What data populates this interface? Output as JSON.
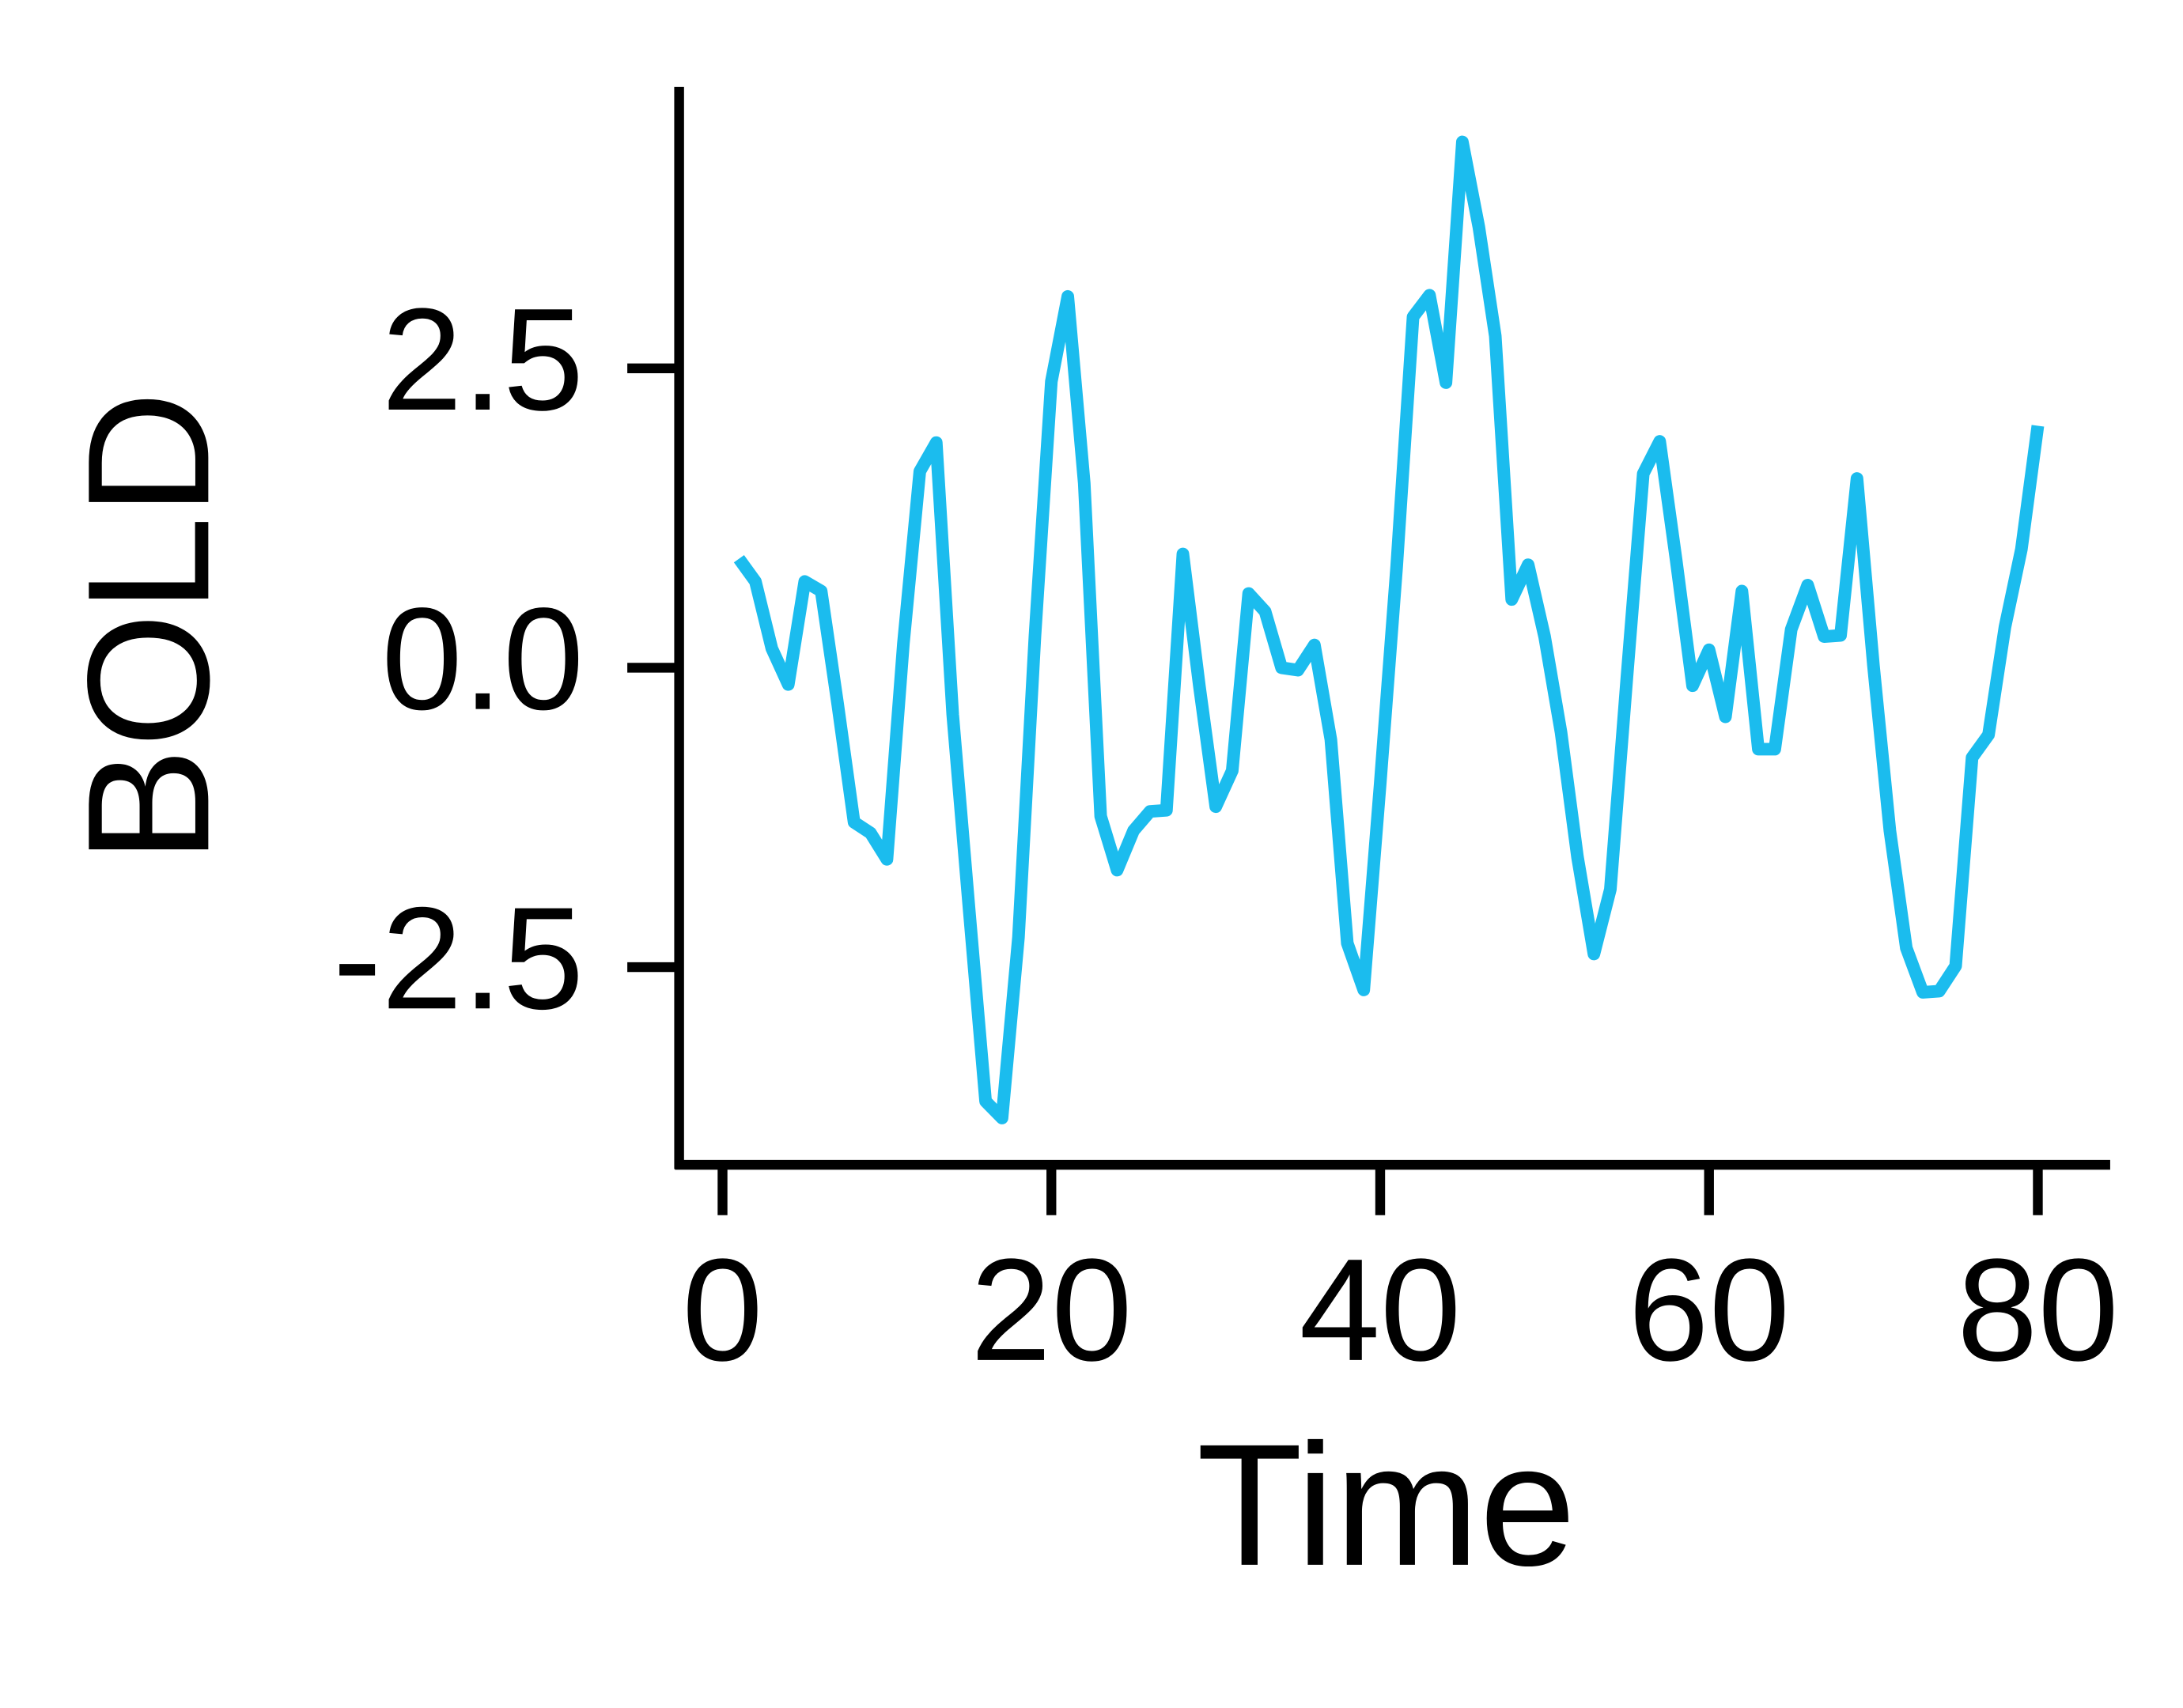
{
  "chart_data": {
    "type": "line",
    "xlabel": "Time",
    "ylabel": "BOLD",
    "x": [
      1,
      2,
      3,
      4,
      5,
      6,
      7,
      8,
      9,
      10,
      11,
      12,
      13,
      14,
      15,
      16,
      17,
      18,
      19,
      20,
      21,
      22,
      23,
      24,
      25,
      26,
      27,
      28,
      29,
      30,
      31,
      32,
      33,
      34,
      35,
      36,
      37,
      38,
      39,
      40,
      41,
      42,
      43,
      44,
      45,
      46,
      47,
      48,
      49,
      50,
      51,
      52,
      53,
      54,
      55,
      56,
      57,
      58,
      59,
      60,
      61,
      62,
      63,
      64,
      65,
      66,
      67,
      68,
      69,
      70,
      71,
      72,
      73,
      74,
      75,
      76,
      77,
      78,
      79,
      80
    ],
    "series": [
      {
        "name": "BOLD",
        "color": "#1bbcee",
        "values": [
          0.91,
          0.72,
          0.16,
          -0.14,
          0.72,
          0.64,
          -0.3,
          -1.29,
          -1.38,
          -1.6,
          0.2,
          1.64,
          1.88,
          -0.39,
          -2.02,
          -3.62,
          -3.76,
          -2.25,
          0.26,
          2.39,
          3.1,
          1.54,
          -1.24,
          -1.69,
          -1.36,
          -1.2,
          -1.19,
          0.95,
          -0.15,
          -1.16,
          -0.86,
          0.62,
          0.47,
          0.0,
          -0.02,
          0.19,
          -0.6,
          -2.3,
          -2.69,
          -0.97,
          0.84,
          2.93,
          3.11,
          2.38,
          4.39,
          3.68,
          2.77,
          0.57,
          0.86,
          0.26,
          -0.54,
          -1.58,
          -2.39,
          -1.85,
          -0.09,
          1.62,
          1.89,
          0.9,
          -0.15,
          0.15,
          -0.41,
          0.64,
          -0.68,
          -0.68,
          0.32,
          0.69,
          0.26,
          0.27,
          1.58,
          0.02,
          -1.36,
          -2.34,
          -2.71,
          -2.7,
          -2.49,
          -0.75,
          -0.56,
          0.34,
          0.99,
          2.02
        ]
      }
    ],
    "xlim": [
      -2.64,
      84.4
    ],
    "xticks": [
      0,
      20,
      40,
      60,
      80
    ],
    "ylim": [
      -4.15,
      4.85
    ],
    "yticks": [
      {
        "value": -2.5,
        "label": "-2.5"
      },
      {
        "value": 0,
        "label": "0.0"
      },
      {
        "value": 2.5,
        "label": "2.5"
      }
    ],
    "grid": false
  }
}
